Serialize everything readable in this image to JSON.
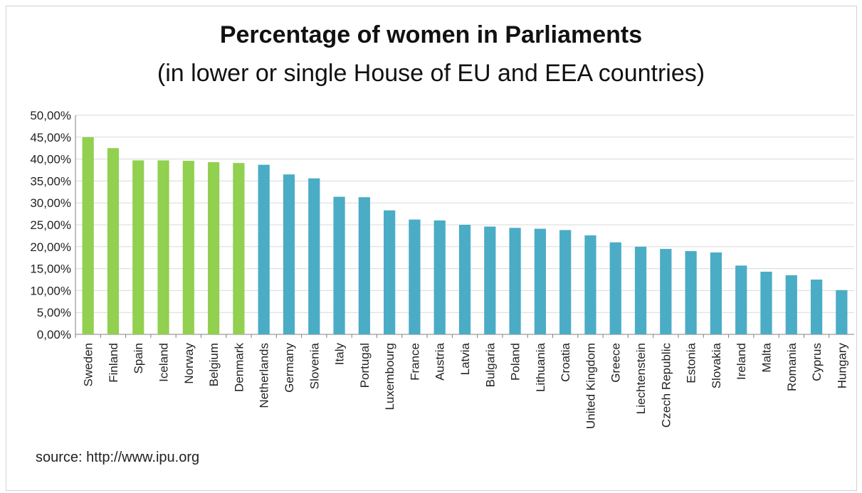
{
  "header": {
    "title": "Percentage of women in Parliaments",
    "subtitle": "(in lower or single House of EU and EEA countries)"
  },
  "footer": {
    "source": "source: http://www.ipu.org"
  },
  "colors": {
    "highlight": "#92d050",
    "bar": "#4bacc6",
    "grid": "#d9d9d9",
    "axis": "#808080"
  },
  "chart_data": {
    "type": "bar",
    "title": "Percentage of women in Parliaments",
    "subtitle": "(in lower or single House of EU and EEA countries)",
    "xlabel": "",
    "ylabel": "",
    "ylim": [
      0,
      50
    ],
    "yticks": [
      "0,00%",
      "5,00%",
      "10,00%",
      "15,00%",
      "20,00%",
      "25,00%",
      "30,00%",
      "35,00%",
      "40,00%",
      "45,00%",
      "50,00%"
    ],
    "grid": true,
    "legend": "none",
    "categories": [
      "Sweden",
      "Finland",
      "Spain",
      "Iceland",
      "Norway",
      "Belgium",
      "Denmark",
      "Netherlands",
      "Germany",
      "Slovenia",
      "Italy",
      "Portugal",
      "Luxembourg",
      "France",
      "Austria",
      "Latvia",
      "Bulgaria",
      "Poland",
      "Lithuania",
      "Croatia",
      "United Kingdom",
      "Greece",
      "Liechtenstein",
      "Czech Republic",
      "Estonia",
      "Slovakia",
      "Ireland",
      "Malta",
      "Romania",
      "Cyprus",
      "Hungary"
    ],
    "values": [
      45.0,
      42.5,
      39.7,
      39.7,
      39.6,
      39.3,
      39.1,
      38.7,
      36.5,
      35.6,
      31.4,
      31.3,
      28.3,
      26.2,
      26.0,
      25.0,
      24.6,
      24.3,
      24.1,
      23.8,
      22.6,
      21.0,
      20.0,
      19.5,
      19.0,
      18.7,
      15.7,
      14.3,
      13.5,
      12.5,
      10.1
    ],
    "highlighted_categories": [
      "Sweden",
      "Finland",
      "Spain",
      "Iceland",
      "Norway",
      "Belgium",
      "Denmark"
    ]
  }
}
